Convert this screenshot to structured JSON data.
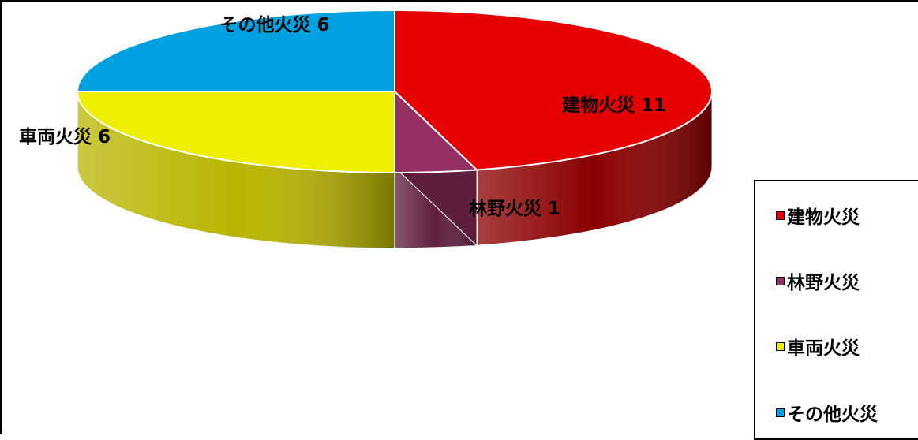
{
  "chart_data": {
    "type": "pie",
    "style": "3d",
    "title": "",
    "categories": [
      "建物火災",
      "林野火災",
      "車両火災",
      "その他火災"
    ],
    "values": [
      11,
      1,
      6,
      6
    ],
    "data_labels": [
      "建物火災 11",
      "林野火災 1",
      "車両火災 6",
      "その他火災 6"
    ],
    "colors": [
      "#e60000",
      "#953162",
      "#f0ef00",
      "#00a1e1"
    ],
    "side_colors": [
      "#8a0000",
      "#5e1f3e",
      "#b8b500",
      "#0077aa"
    ],
    "legend": {
      "position": "right",
      "entries": [
        "建物火災",
        "林野火災",
        "車両火災",
        "その他火災"
      ]
    }
  }
}
